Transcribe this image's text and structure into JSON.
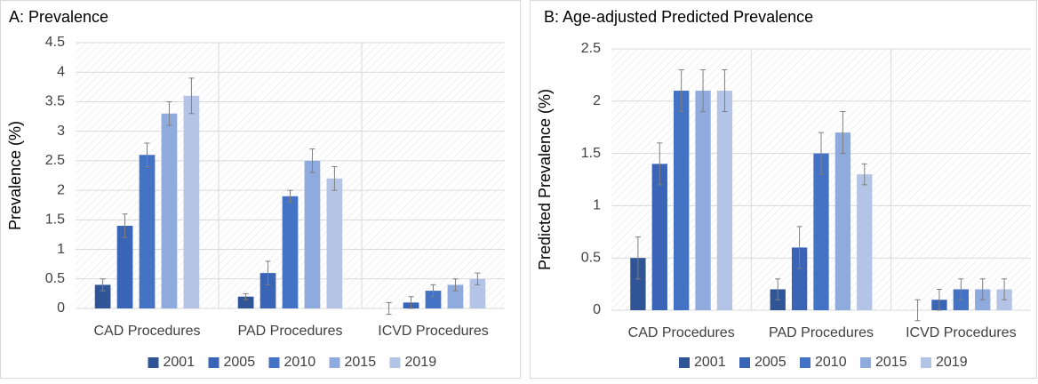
{
  "chart_data": [
    {
      "type": "bar",
      "title": "A: Prevalence",
      "y_label": "Prevalence (%)",
      "categories": [
        "CAD Procedures",
        "PAD Procedures",
        "ICVD Procedures"
      ],
      "ylim": [
        0,
        4.5
      ],
      "yticks": [
        0,
        0.5,
        1,
        1.5,
        2,
        2.5,
        3,
        3.5,
        4,
        4.5
      ],
      "grid": true,
      "legend": "bottom",
      "series": [
        {
          "name": "2001",
          "color": "#2f5597",
          "values": [
            0.4,
            0.2,
            0
          ],
          "errors": [
            0.1,
            0.05,
            0.1
          ]
        },
        {
          "name": "2005",
          "color": "#3a64b5",
          "values": [
            1.4,
            0.6,
            0.1
          ],
          "errors": [
            0.2,
            0.2,
            0.1
          ]
        },
        {
          "name": "2010",
          "color": "#4472c4",
          "values": [
            2.6,
            1.9,
            0.3
          ],
          "errors": [
            0.2,
            0.1,
            0.1
          ]
        },
        {
          "name": "2015",
          "color": "#8faadc",
          "values": [
            3.3,
            2.5,
            0.4
          ],
          "errors": [
            0.2,
            0.2,
            0.1
          ]
        },
        {
          "name": "2019",
          "color": "#b4c4e6",
          "values": [
            3.6,
            2.2,
            0.5
          ],
          "errors": [
            0.3,
            0.2,
            0.1
          ]
        }
      ]
    },
    {
      "type": "bar",
      "title": "B: Age-adjusted Predicted Prevalence",
      "y_label": "Predicted Prevalence (%)",
      "categories": [
        "CAD Procedures",
        "PAD Procedures",
        "ICVD Procedures"
      ],
      "ylim": [
        0,
        2.5
      ],
      "yticks": [
        0,
        0.5,
        1,
        1.5,
        2,
        2.5
      ],
      "grid": true,
      "legend": "bottom",
      "series": [
        {
          "name": "2001",
          "color": "#2f5597",
          "values": [
            0.5,
            0.2,
            0
          ],
          "errors": [
            0.2,
            0.1,
            0.1
          ]
        },
        {
          "name": "2005",
          "color": "#3a64b5",
          "values": [
            1.4,
            0.6,
            0.1
          ],
          "errors": [
            0.2,
            0.2,
            0.1
          ]
        },
        {
          "name": "2010",
          "color": "#4472c4",
          "values": [
            2.1,
            1.5,
            0.2
          ],
          "errors": [
            0.2,
            0.2,
            0.1
          ]
        },
        {
          "name": "2015",
          "color": "#8faadc",
          "values": [
            2.1,
            1.7,
            0.2
          ],
          "errors": [
            0.2,
            0.2,
            0.1
          ]
        },
        {
          "name": "2019",
          "color": "#b4c4e6",
          "values": [
            2.1,
            1.3,
            0.2
          ],
          "errors": [
            0.2,
            0.1,
            0.1
          ]
        }
      ]
    }
  ]
}
